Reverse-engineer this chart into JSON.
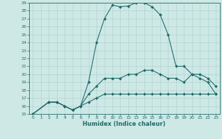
{
  "xlabel": "Humidex (Indice chaleur)",
  "xlim": [
    -0.5,
    23.5
  ],
  "ylim": [
    15,
    29
  ],
  "xticks": [
    0,
    1,
    2,
    3,
    4,
    5,
    6,
    7,
    8,
    9,
    10,
    11,
    12,
    13,
    14,
    15,
    16,
    17,
    18,
    19,
    20,
    21,
    22,
    23
  ],
  "yticks": [
    15,
    16,
    17,
    18,
    19,
    20,
    21,
    22,
    23,
    24,
    25,
    26,
    27,
    28,
    29
  ],
  "background_color": "#cde8e5",
  "line_color": "#1f6b6b",
  "line1_x": [
    0,
    2,
    3,
    4,
    5,
    6,
    7,
    8,
    9,
    10,
    11,
    12,
    13,
    14,
    15,
    16,
    17,
    18,
    19,
    20,
    21,
    22,
    23
  ],
  "line1_y": [
    15,
    16.5,
    16.5,
    16,
    15.5,
    16,
    19,
    24,
    27,
    28.7,
    28.5,
    28.6,
    29,
    29,
    28.5,
    27.5,
    25,
    21,
    21,
    20,
    19.5,
    19,
    17.5
  ],
  "line2_x": [
    0,
    2,
    3,
    4,
    5,
    6,
    7,
    8,
    9,
    10,
    11,
    12,
    13,
    14,
    15,
    16,
    17,
    18,
    19,
    20,
    21,
    22,
    23
  ],
  "line2_y": [
    15,
    16.5,
    16.5,
    16,
    15.5,
    16,
    17.5,
    18.5,
    19.5,
    19.5,
    19.5,
    20,
    20,
    20.5,
    20.5,
    20,
    19.5,
    19.5,
    19,
    20,
    20,
    19.5,
    18.5
  ],
  "line3_x": [
    0,
    2,
    3,
    4,
    5,
    6,
    7,
    8,
    9,
    10,
    11,
    12,
    13,
    14,
    15,
    16,
    17,
    18,
    19,
    20,
    21,
    22,
    23
  ],
  "line3_y": [
    15,
    16.5,
    16.5,
    16,
    15.5,
    16,
    16.5,
    17,
    17.5,
    17.5,
    17.5,
    17.5,
    17.5,
    17.5,
    17.5,
    17.5,
    17.5,
    17.5,
    17.5,
    17.5,
    17.5,
    17.5,
    17.5
  ],
  "grid_color": "#aad0cc",
  "marker": "D",
  "markersize": 2,
  "linewidth": 0.8,
  "tick_fontsize": 4.5,
  "label_fontsize": 6.0
}
